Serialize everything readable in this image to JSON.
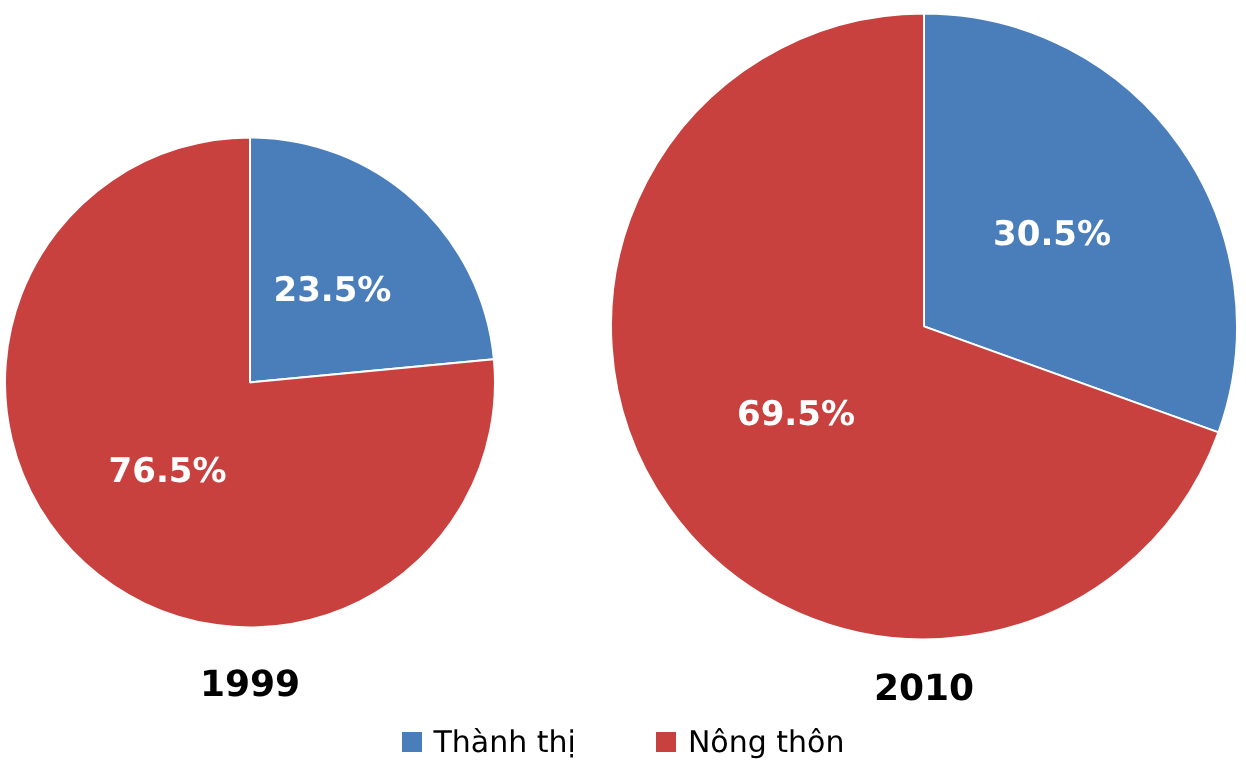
{
  "chart_data": [
    {
      "type": "pie",
      "title": "1999",
      "categories": [
        "Thành thị",
        "Nông thôn"
      ],
      "values": [
        23.5,
        76.5
      ],
      "value_labels": [
        "23.5%",
        "76.5%"
      ],
      "colors": [
        "#4a7ebb",
        "#c8413e"
      ],
      "legend": "bottom"
    },
    {
      "type": "pie",
      "title": "2010",
      "categories": [
        null,
        null
      ],
      "values": [
        30.5,
        69.5
      ],
      "value_labels": [
        "30.5%",
        "69.5%"
      ],
      "colors": [
        "#4a7ebb",
        "#c8413e"
      ]
    }
  ]
}
